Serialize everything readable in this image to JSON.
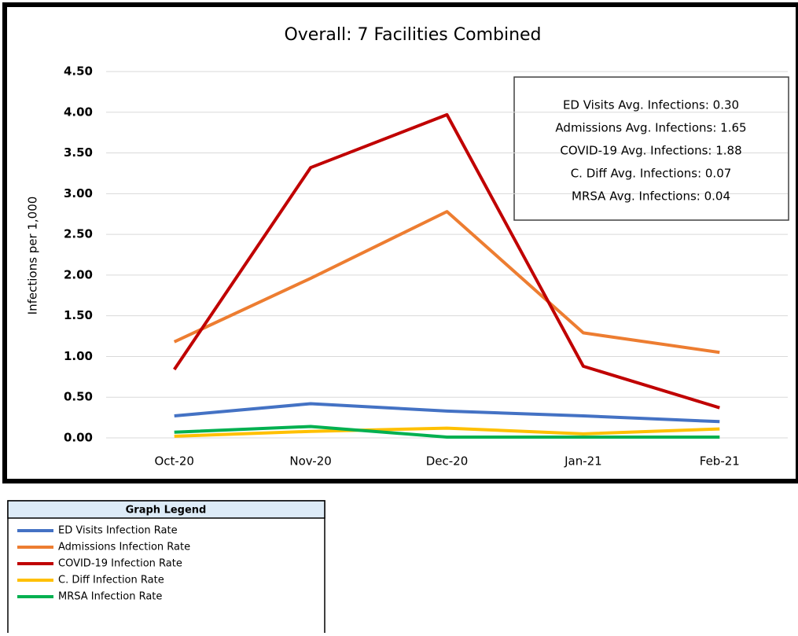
{
  "chart_data": {
    "type": "line",
    "title": "Overall: 7 Facilities Combined",
    "y_label": "Infections per 1,000",
    "categories": [
      "Oct-20",
      "Nov-20",
      "Dec-20",
      "Jan-21",
      "Feb-21"
    ],
    "series": [
      {
        "name": "ED Visits Infection Rate",
        "color": "#4472c4",
        "values": [
          0.27,
          0.42,
          0.33,
          0.27,
          0.2
        ]
      },
      {
        "name": "Admissions Infection Rate",
        "color": "#ed7d31",
        "values": [
          1.18,
          1.96,
          2.78,
          1.29,
          1.05
        ]
      },
      {
        "name": "COVID-19 Infection Rate",
        "color": "#c00000",
        "values": [
          0.84,
          3.32,
          3.97,
          0.88,
          0.37
        ]
      },
      {
        "name": "C. Diff Infection Rate",
        "color": "#ffc000",
        "values": [
          0.02,
          0.08,
          0.12,
          0.05,
          0.11
        ]
      },
      {
        "name": "MRSA Infection Rate",
        "color": "#00b050",
        "values": [
          0.07,
          0.14,
          0.01,
          0.01,
          0.01
        ]
      }
    ],
    "ylim": [
      0,
      4.5
    ],
    "yticks": [
      {
        "value": 0,
        "label": "0.00"
      },
      {
        "value": 0.5,
        "label": "0.50"
      },
      {
        "value": 1,
        "label": "1.00"
      },
      {
        "value": 1.5,
        "label": "1.50"
      },
      {
        "value": 2,
        "label": "2.00"
      },
      {
        "value": 2.5,
        "label": "2.50"
      },
      {
        "value": 3,
        "label": "3.00"
      },
      {
        "value": 3.5,
        "label": "3.50"
      },
      {
        "value": 4,
        "label": "4.00"
      },
      {
        "value": 4.5,
        "label": "4.50"
      }
    ],
    "grid": true,
    "annotations": [
      "ED Visits Avg. Infections: 0.30",
      "Admissions Avg. Infections: 1.65",
      "COVID-19 Avg. Infections: 1.88",
      "C. Diff Avg. Infections: 0.07",
      "MRSA Avg. Infections: 0.04"
    ],
    "legend_title": "Graph Legend"
  }
}
